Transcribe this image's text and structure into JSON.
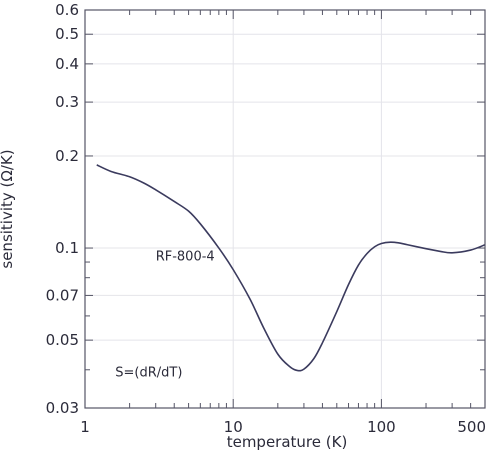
{
  "chart_data": {
    "type": "line",
    "title": "",
    "xlabel": "temperature (K)",
    "ylabel": "sensitivity (Ω/K)",
    "xscale": "log",
    "yscale": "log",
    "xlim": [
      1,
      500
    ],
    "ylim": [
      0.03,
      0.6
    ],
    "grid": true,
    "x_ticks": [
      {
        "value": 1,
        "label": "1"
      },
      {
        "value": 10,
        "label": "10"
      },
      {
        "value": 100,
        "label": "100"
      },
      {
        "value": 500,
        "label": "500"
      }
    ],
    "y_ticks": [
      {
        "value": 0.03,
        "label": "0.03"
      },
      {
        "value": 0.05,
        "label": "0.05"
      },
      {
        "value": 0.07,
        "label": "0.07"
      },
      {
        "value": 0.1,
        "label": "0.1"
      },
      {
        "value": 0.2,
        "label": "0.2"
      },
      {
        "value": 0.3,
        "label": "0.3"
      },
      {
        "value": 0.4,
        "label": "0.4"
      },
      {
        "value": 0.5,
        "label": "0.5"
      },
      {
        "value": 0.6,
        "label": "0.6"
      }
    ],
    "annotations": [
      {
        "text": "RF-800-4",
        "x": 3.0,
        "y": 0.091
      },
      {
        "text": "S=(dR/dT)",
        "x": 1.6,
        "y": 0.038
      }
    ],
    "series": [
      {
        "color": "#3b3b5e",
        "x": [
          1.2,
          1.5,
          2.0,
          2.5,
          3.0,
          4.0,
          5.0,
          6.0,
          8.0,
          10,
          13,
          16,
          20,
          24,
          27,
          30,
          35,
          40,
          50,
          60,
          70,
          80,
          90,
          100,
          115,
          130,
          150,
          200,
          250,
          300,
          400,
          500
        ],
        "y": [
          0.187,
          0.178,
          0.171,
          0.163,
          0.155,
          0.142,
          0.132,
          0.12,
          0.1,
          0.085,
          0.068,
          0.055,
          0.045,
          0.041,
          0.0398,
          0.0402,
          0.0435,
          0.049,
          0.062,
          0.076,
          0.088,
          0.096,
          0.101,
          0.1035,
          0.1045,
          0.104,
          0.1025,
          0.0995,
          0.0975,
          0.0965,
          0.0985,
          0.1025
        ]
      }
    ]
  }
}
